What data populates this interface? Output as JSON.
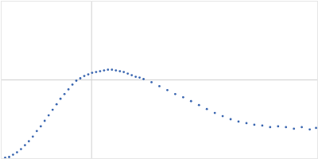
{
  "chart_data": {
    "type": "scatter",
    "color": "#3a66b0",
    "marker": "circle",
    "x": [
      0.044,
      0.088,
      0.131,
      0.175,
      0.219,
      0.263,
      0.306,
      0.35,
      0.394,
      0.438,
      0.481,
      0.525,
      0.569,
      0.613,
      0.656,
      0.7,
      0.744,
      0.788,
      0.831,
      0.875,
      0.919,
      0.963,
      1.006,
      1.05,
      1.094,
      1.138,
      1.181,
      1.225,
      1.269,
      1.313,
      1.356,
      1.4,
      1.444,
      1.488,
      1.531,
      1.575,
      1.663,
      1.75,
      1.838,
      1.925,
      2.013,
      2.1,
      2.188,
      2.275,
      2.363,
      2.45,
      2.538,
      2.625,
      2.713,
      2.8,
      2.888,
      2.975,
      3.063,
      3.15,
      3.238,
      3.325,
      3.413,
      3.483
    ],
    "values": [
      0.01,
      0.02,
      0.05,
      0.08,
      0.12,
      0.17,
      0.22,
      0.28,
      0.35,
      0.41,
      0.48,
      0.55,
      0.62,
      0.69,
      0.76,
      0.82,
      0.88,
      0.94,
      0.99,
      1.02,
      1.05,
      1.07,
      1.09,
      1.1,
      1.11,
      1.12,
      1.13,
      1.13,
      1.12,
      1.11,
      1.1,
      1.08,
      1.06,
      1.04,
      1.03,
      1.01,
      0.97,
      0.92,
      0.87,
      0.82,
      0.78,
      0.73,
      0.68,
      0.63,
      0.58,
      0.54,
      0.5,
      0.47,
      0.45,
      0.43,
      0.42,
      0.4,
      0.41,
      0.4,
      0.38,
      0.4,
      0.37,
      0.39
    ],
    "xlim": [
      0,
      3.5
    ],
    "ylim": [
      0,
      2
    ],
    "xticks": [
      1
    ],
    "yticks": [
      1
    ],
    "grid": true,
    "tick_labels": false
  }
}
